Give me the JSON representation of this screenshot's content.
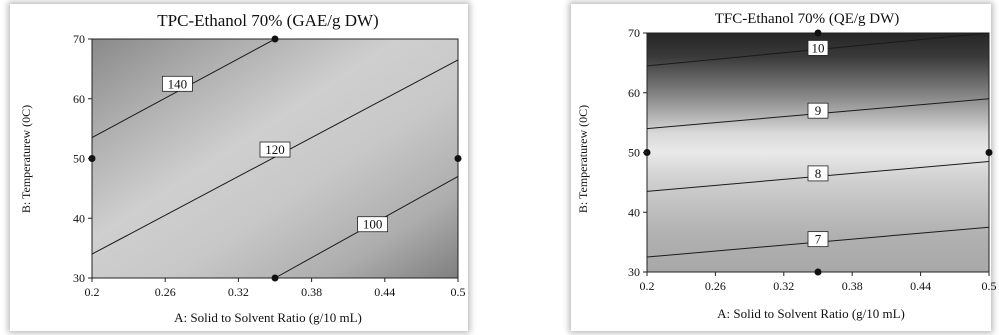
{
  "chart_data": [
    {
      "type": "contour",
      "title": "TPC-Ethanol 70% (GAE/g DW)",
      "xlabel": "A: Solid to Solvent Ratio (g/10 mL)",
      "ylabel": "B: Temperaturew (0C)",
      "xlim": [
        0.2,
        0.5
      ],
      "ylim": [
        30,
        70
      ],
      "x_ticks": [
        "0.2",
        "0.26",
        "0.32",
        "0.38",
        "0.44",
        "0.5"
      ],
      "y_ticks": [
        "30",
        "40",
        "50",
        "60",
        "70"
      ],
      "contours": [
        {
          "level": "140",
          "points": [
            [
              0.2,
              53.5
            ],
            [
              0.35,
              70
            ]
          ]
        },
        {
          "level": "120",
          "points": [
            [
              0.2,
              34
            ],
            [
              0.5,
              66.5
            ]
          ]
        },
        {
          "level": "100",
          "points": [
            [
              0.35,
              30
            ],
            [
              0.5,
              47
            ]
          ]
        }
      ],
      "labels": [
        {
          "text": "140",
          "x": 0.27,
          "y": 62.5
        },
        {
          "text": "120",
          "x": 0.35,
          "y": 51.5
        },
        {
          "text": "100",
          "x": 0.43,
          "y": 39
        }
      ],
      "design_points": [
        [
          0.2,
          50
        ],
        [
          0.5,
          50
        ],
        [
          0.35,
          70
        ],
        [
          0.35,
          30
        ]
      ],
      "shading": "grey gradient, lighter along diagonal band, darker at top-left and bottom-right corners"
    },
    {
      "type": "contour",
      "title": "TFC-Ethanol 70% (QE/g DW)",
      "xlabel": "A: Solid to Solvent Ratio (g/10 mL)",
      "ylabel": "B: Temperaturew (0C)",
      "xlim": [
        0.2,
        0.5
      ],
      "ylim": [
        30,
        70
      ],
      "x_ticks": [
        "0.2",
        "0.26",
        "0.32",
        "0.38",
        "0.44",
        "0.5"
      ],
      "y_ticks": [
        "30",
        "40",
        "50",
        "60",
        "70"
      ],
      "contours": [
        {
          "level": "10",
          "points": [
            [
              0.2,
              64.5
            ],
            [
              0.5,
              70
            ]
          ]
        },
        {
          "level": "9",
          "points": [
            [
              0.2,
              54
            ],
            [
              0.5,
              59
            ]
          ]
        },
        {
          "level": "8",
          "points": [
            [
              0.2,
              43.5
            ],
            [
              0.5,
              48.5
            ]
          ]
        },
        {
          "level": "7",
          "points": [
            [
              0.2,
              32.5
            ],
            [
              0.5,
              37.5
            ]
          ]
        }
      ],
      "labels": [
        {
          "text": "10",
          "x": 0.35,
          "y": 67.5
        },
        {
          "text": "9",
          "x": 0.35,
          "y": 57
        },
        {
          "text": "8",
          "x": 0.35,
          "y": 46.5
        },
        {
          "text": "7",
          "x": 0.35,
          "y": 35.5
        }
      ],
      "design_points": [
        [
          0.2,
          50
        ],
        [
          0.5,
          50
        ],
        [
          0.35,
          70
        ],
        [
          0.35,
          30
        ]
      ],
      "shading": "dark at top, light band near 45-50, medium grey at bottom"
    }
  ]
}
